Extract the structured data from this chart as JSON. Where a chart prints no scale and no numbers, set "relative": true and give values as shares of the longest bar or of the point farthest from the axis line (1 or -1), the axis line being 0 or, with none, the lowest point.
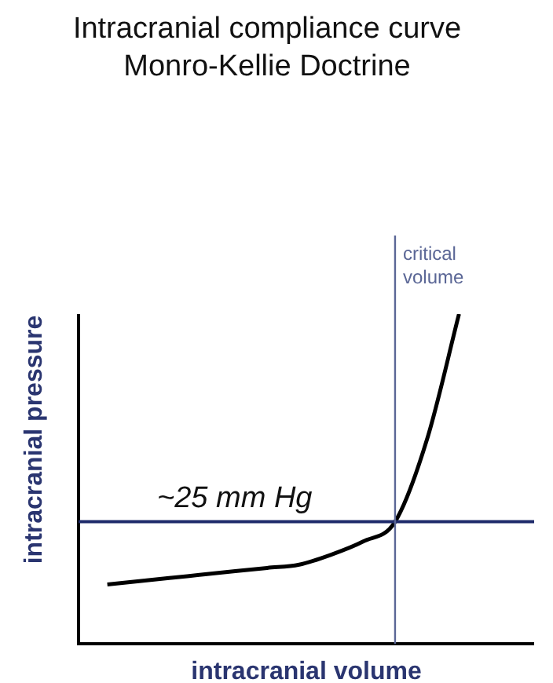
{
  "chart_data": {
    "type": "line",
    "title": "Intracranial compliance curve",
    "subtitle": "Monro-Kellie Doctrine",
    "xlabel": "intracranial volume",
    "ylabel": "intracranial pressure",
    "relative": true,
    "tick_labels": false,
    "grid": false,
    "legend": false,
    "marker": "none",
    "line_style": "solid",
    "categories": [
      null,
      null,
      null,
      null,
      null,
      null,
      null,
      null,
      null,
      null,
      null,
      null
    ],
    "series": [
      {
        "color": "#000000",
        "values": [
          0.18,
          0.19,
          0.2,
          0.21,
          0.22,
          0.23,
          0.24,
          0.27,
          0.31,
          0.37,
          0.62,
          1
        ]
      }
    ],
    "ref_lines": [
      {
        "axis": "y",
        "value": 0.37,
        "label": "~25 mm Hg",
        "color": "#1f2b6b"
      }
    ],
    "annotations": [
      "critical\nvolume"
    ]
  }
}
